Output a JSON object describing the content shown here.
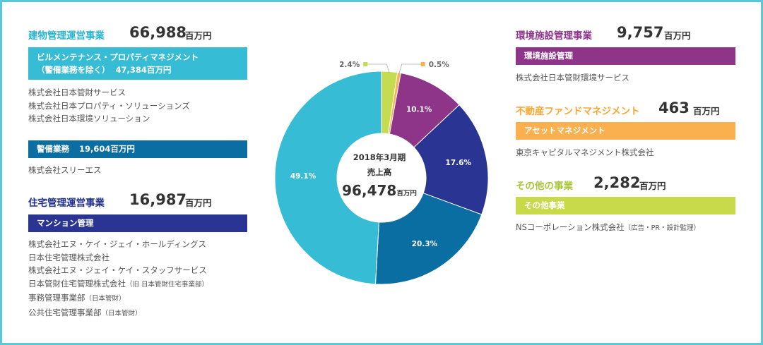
{
  "colors": {
    "border": "#5bc8da",
    "building_title": "#2bb3cf",
    "housing_title": "#1f2f8a",
    "env_title": "#8e3589",
    "fund_title": "#f7a833",
    "other_title": "#a8c83a",
    "bar_building_bm": "#36bcd4",
    "bar_security": "#0a6ea3",
    "bar_mansion": "#2a3593",
    "bar_env": "#8e3589",
    "bar_asset": "#fbb04f",
    "bar_other": "#c8d94a"
  },
  "left": {
    "building": {
      "title": "建物管理運営事業",
      "value": "66,988",
      "unit": "百万円",
      "bar": {
        "line1": "ビルメンテナンス・プロパティマネジメント",
        "line2_a": "（警備業務を除く）",
        "line2_b": "47,384百万円"
      },
      "companies": [
        "株式会社日本管財サービス",
        "株式会社日本プロパティ・ソリューションズ",
        "株式会社日本環境ソリューション"
      ],
      "security_bar": {
        "label": "警備業務",
        "value": "19,604百万円"
      },
      "security_companies": [
        "株式会社スリーエス"
      ]
    },
    "housing": {
      "title": "住宅管理運営事業",
      "value": "16,987",
      "unit": "百万円",
      "bar": "マンション管理",
      "companies": [
        {
          "main": "株式会社エヌ・ケイ・ジェイ・ホールディングス",
          "note": ""
        },
        {
          "main": "日本住宅管理株式会社",
          "note": ""
        },
        {
          "main": "株式会社エヌ・ジェイ・ケイ・スタッフサービス",
          "note": ""
        },
        {
          "main": "日本管財住宅管理株式会社",
          "note": "（旧 日本管財住宅事業部）"
        },
        {
          "main": "事務管理事業部",
          "note": "（日本管財）"
        },
        {
          "main": "公共住宅管理事業部",
          "note": "（日本管財）"
        }
      ]
    }
  },
  "right": {
    "env": {
      "title": "環境施設管理事業",
      "value": "9,757",
      "unit": "百万円",
      "bar": "環境施設管理",
      "company": "株式会社日本管財環境サービス",
      "note": ""
    },
    "fund": {
      "title": "不動産ファンドマネジメント",
      "value": "463",
      "unit": "百万円",
      "bar": "アセットマネジメント",
      "company": "東京キャピタルマネジメント株式会社",
      "note": ""
    },
    "other": {
      "title": "その他の事業",
      "value": "2,282",
      "unit": "百万円",
      "bar": "その他事業",
      "company": "NSコーポレーション株式会社",
      "note": "（広告・PR・設計監理）"
    }
  },
  "chart_data": {
    "type": "pie",
    "donut": true,
    "center": {
      "line1": "2018年3月期",
      "line2": "売上高",
      "value": "96,478",
      "unit": "百万円"
    },
    "slices": [
      {
        "label": "2.4%",
        "value": 2.4,
        "color": "#c5db50"
      },
      {
        "label": "0.5%",
        "value": 0.5,
        "color": "#fbb04f"
      },
      {
        "label": "10.1%",
        "value": 10.1,
        "color": "#8e3589"
      },
      {
        "label": "17.6%",
        "value": 17.6,
        "color": "#2a3593"
      },
      {
        "label": "20.3%",
        "value": 20.3,
        "color": "#0a6ea3"
      },
      {
        "label": "49.1%",
        "value": 49.1,
        "color": "#36bcd4"
      }
    ]
  }
}
